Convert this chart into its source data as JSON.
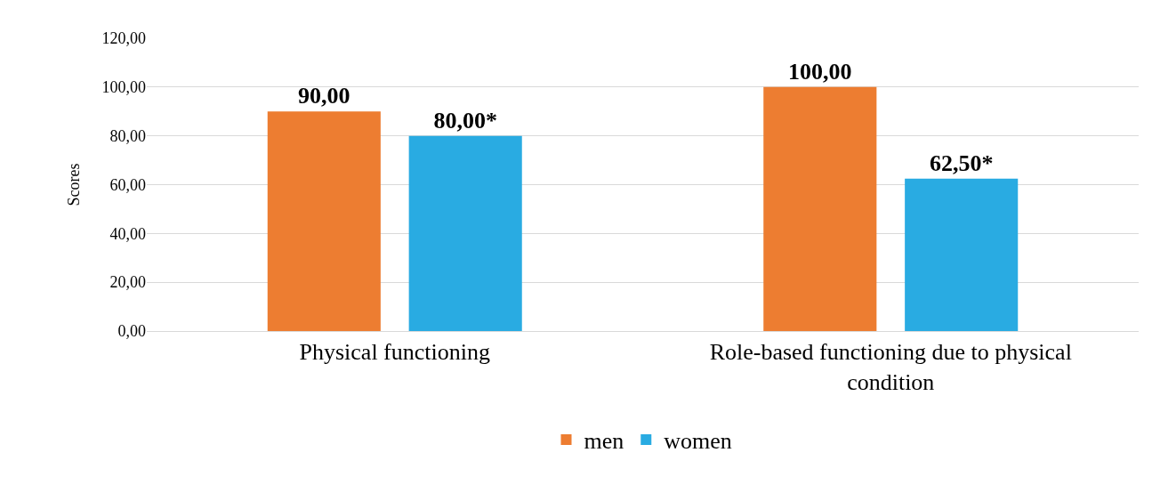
{
  "chart_data": {
    "type": "bar",
    "ylabel": "Scores",
    "categories": [
      "Physical functioning",
      "Role-based functioning due to physical condition"
    ],
    "series": [
      {
        "name": "men",
        "color": "#ed7d31",
        "values": [
          90,
          100
        ],
        "value_labels": [
          "90,00",
          "100,00"
        ]
      },
      {
        "name": "women",
        "color": "#29abe2",
        "values": [
          80,
          62.5
        ],
        "value_labels": [
          "80,00*",
          "62,50*"
        ]
      }
    ],
    "ylim": [
      0,
      120
    ],
    "yticks": [
      {
        "value": 0,
        "label": "0,00"
      },
      {
        "value": 20,
        "label": "20,00"
      },
      {
        "value": 40,
        "label": "40,00"
      },
      {
        "value": 60,
        "label": "60,00"
      },
      {
        "value": 80,
        "label": "80,00"
      },
      {
        "value": 100,
        "label": "100,00"
      },
      {
        "value": 120,
        "label": "120,00"
      }
    ],
    "grid": "y",
    "legend": "bottom"
  }
}
